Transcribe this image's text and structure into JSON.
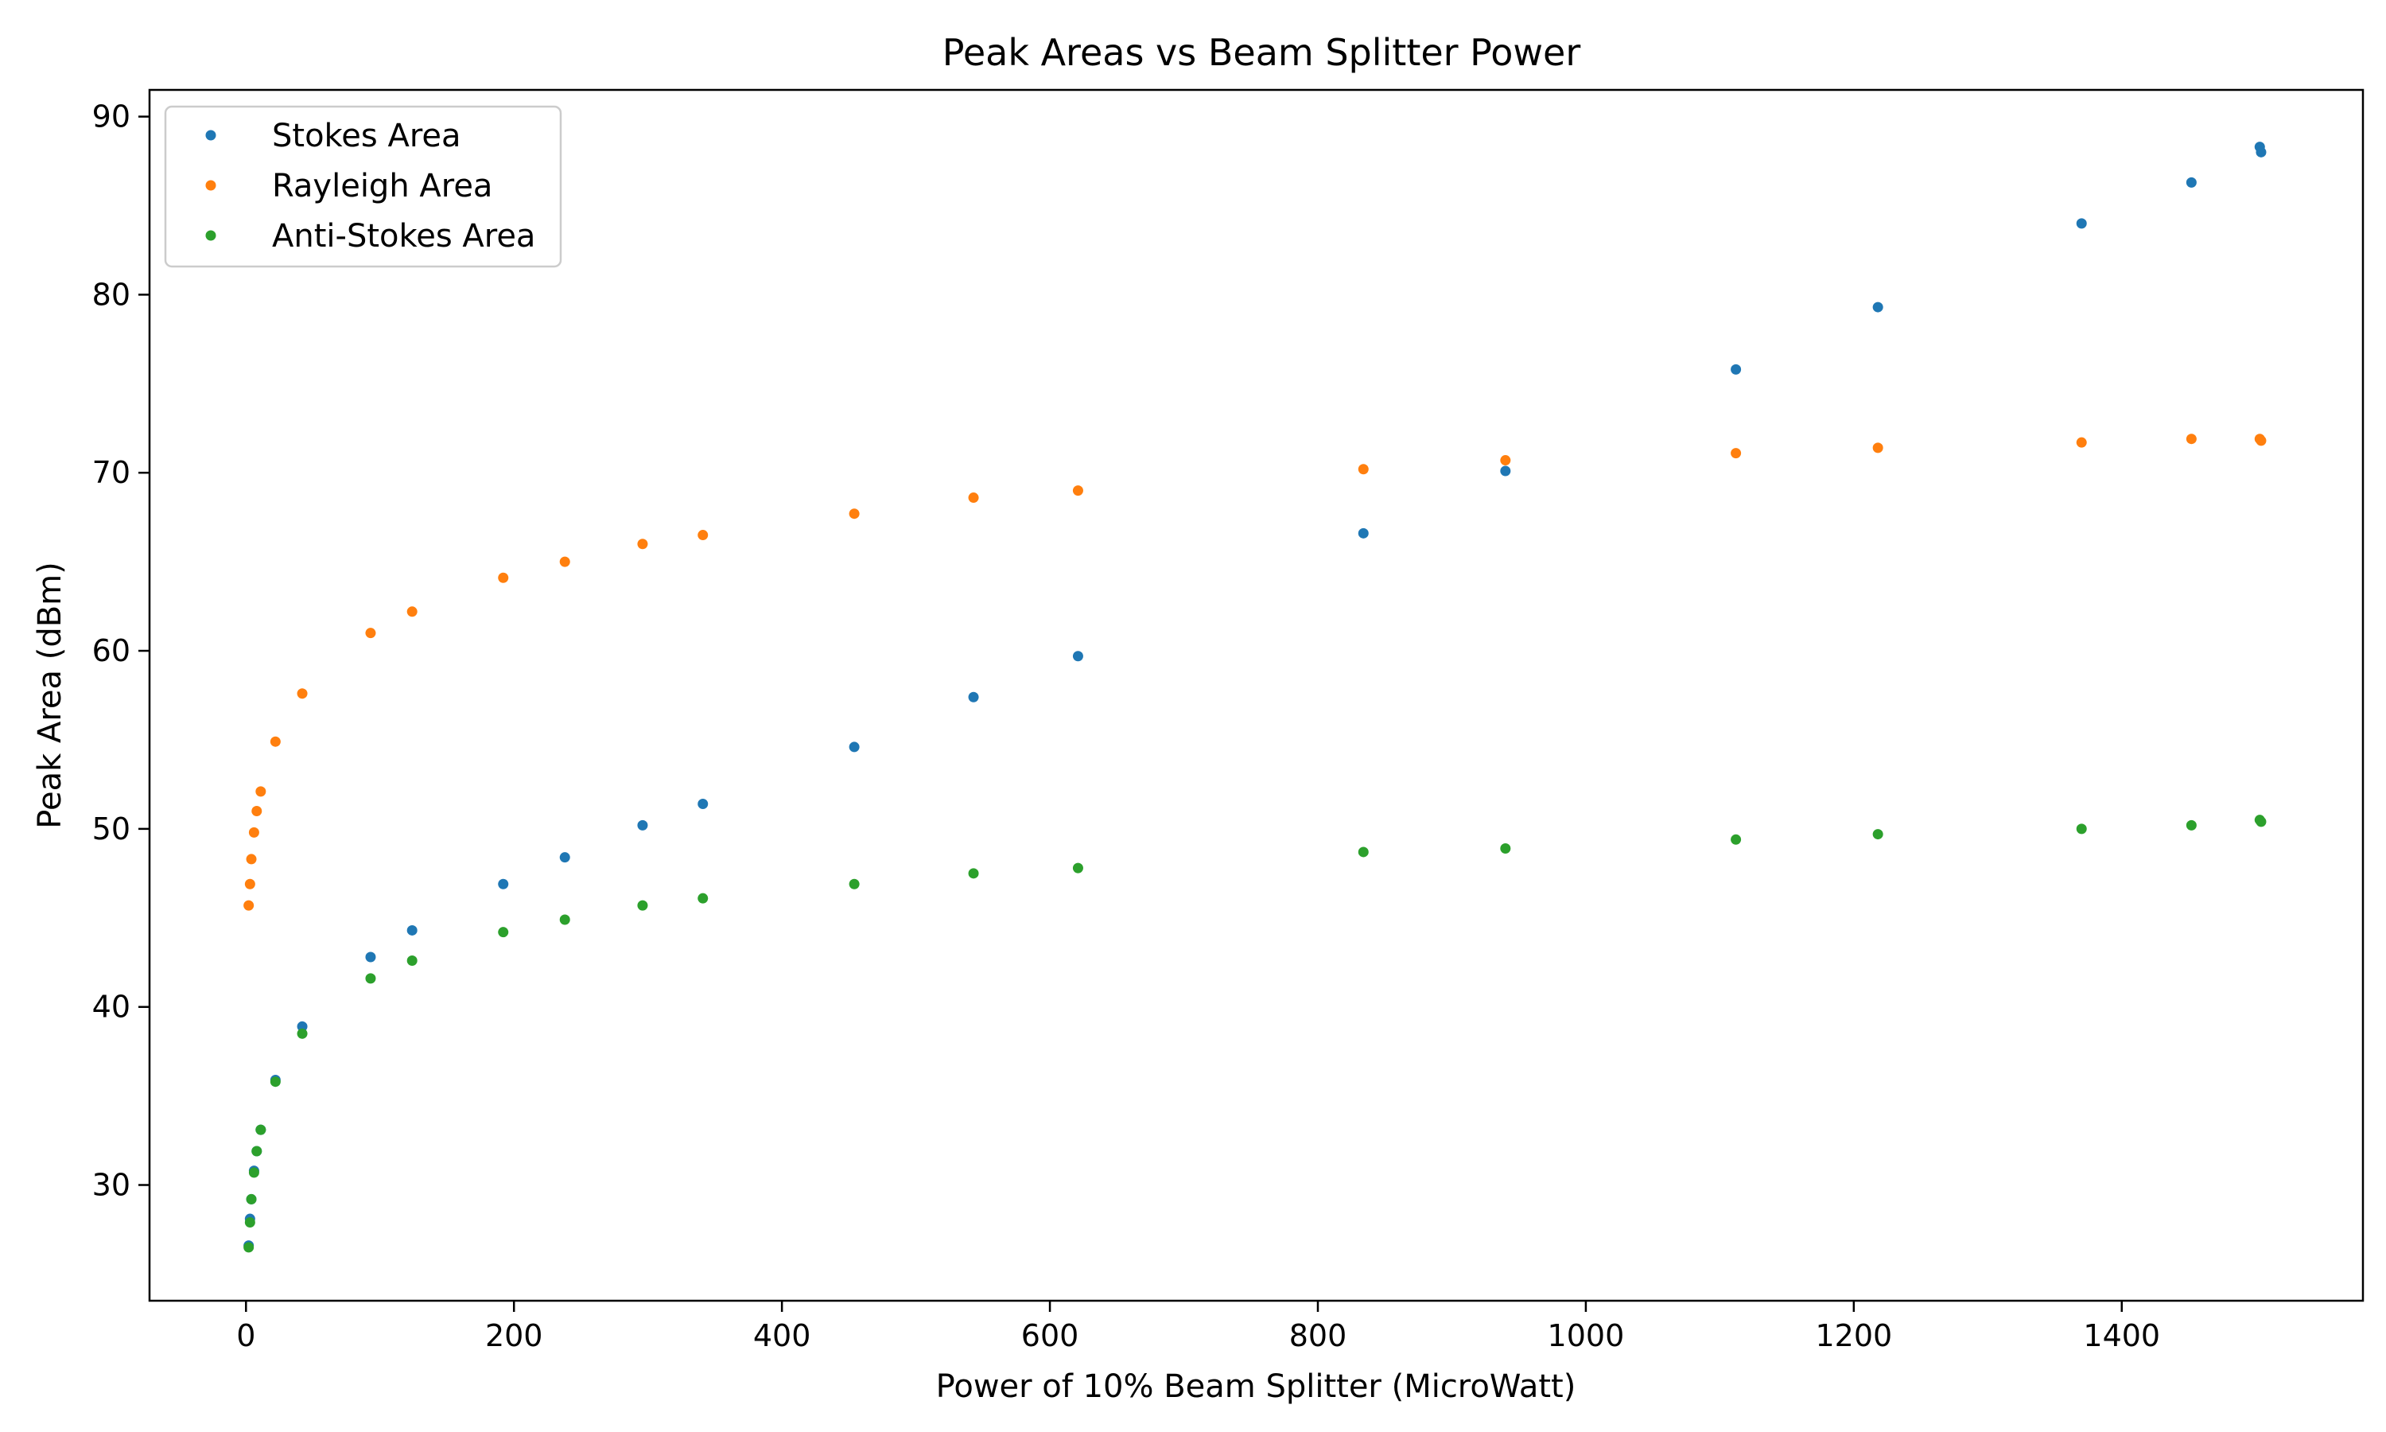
{
  "chart_data": {
    "type": "scatter",
    "title": "Peak Areas vs Beam Splitter Power",
    "xlabel": "Power of 10% Beam Splitter (MicroWatt)",
    "ylabel": "Peak Area (dBm)",
    "xlim": [
      -72,
      1580
    ],
    "ylim": [
      23.5,
      91.5
    ],
    "xticks": [
      0,
      200,
      400,
      600,
      800,
      1000,
      1200,
      1400
    ],
    "yticks": [
      30,
      40,
      50,
      60,
      70,
      80,
      90
    ],
    "grid": false,
    "legend_position": "top-left",
    "x": [
      2,
      3,
      4,
      6,
      8,
      11,
      22,
      42,
      93,
      124,
      192,
      238,
      296,
      341,
      454,
      543,
      621,
      834,
      940,
      1112,
      1218,
      1370,
      1452,
      1503,
      1504
    ],
    "series": [
      {
        "name": "Stokes Area",
        "color": "#1f77b4",
        "values": [
          26.6,
          28.1,
          29.2,
          30.8,
          31.9,
          33.1,
          35.9,
          38.9,
          42.8,
          44.3,
          46.9,
          48.4,
          50.2,
          51.4,
          54.6,
          57.4,
          59.7,
          66.6,
          70.1,
          75.8,
          79.3,
          84.0,
          86.3,
          88.3,
          88.0
        ]
      },
      {
        "name": "Rayleigh Area",
        "color": "#ff7f0e",
        "values": [
          45.7,
          46.9,
          48.3,
          49.8,
          51.0,
          52.1,
          54.9,
          57.6,
          61.0,
          62.2,
          64.1,
          65.0,
          66.0,
          66.5,
          67.7,
          68.6,
          69.0,
          70.2,
          70.7,
          71.1,
          71.4,
          71.7,
          71.9,
          71.9,
          71.8
        ]
      },
      {
        "name": "Anti-Stokes Area",
        "color": "#2ca02c",
        "values": [
          26.5,
          27.9,
          29.2,
          30.7,
          31.9,
          33.1,
          35.8,
          38.5,
          41.6,
          42.6,
          44.2,
          44.9,
          45.7,
          46.1,
          46.9,
          47.5,
          47.8,
          48.7,
          48.9,
          49.4,
          49.7,
          50.0,
          50.2,
          50.5,
          50.4
        ]
      }
    ]
  }
}
